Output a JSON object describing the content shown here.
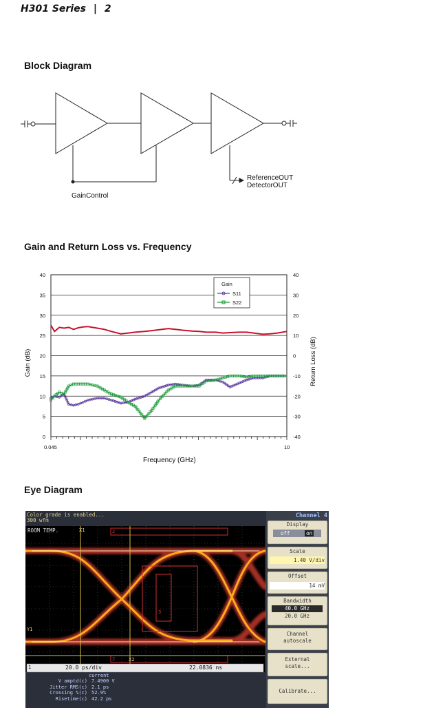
{
  "header": {
    "series": "H301 Series",
    "separator": "|",
    "page": "2"
  },
  "block_diagram": {
    "title": "Block Diagram",
    "gain_control_label": "GainControl",
    "ref_out_label": "ReferenceOUT",
    "det_out_label": "DetectorOUT"
  },
  "gain_chart": {
    "title": "Gain and Return Loss vs. Frequency"
  },
  "chart_data": {
    "type": "line",
    "title": "Gain and Return Loss vs. Frequency",
    "xlabel": "Frequency (GHz)",
    "ylabel": "Gain (dB)",
    "y2label": "Return Loss (dB)",
    "x_tick_labels": [
      "0.045",
      "10"
    ],
    "xlim": [
      0.045,
      10
    ],
    "ylim": [
      0,
      40
    ],
    "y2lim": [
      -40,
      40
    ],
    "yticks": [
      "0",
      "5",
      "10",
      "15",
      "20",
      "25",
      "30",
      "35",
      "40"
    ],
    "y2ticks": [
      "-40",
      "-30",
      "-20",
      "-10",
      "0",
      "10",
      "20",
      "30",
      "40"
    ],
    "grid": true,
    "legend": {
      "title": "Gain",
      "placement": "top-right-inner",
      "entries": [
        "S11",
        "S22"
      ]
    },
    "x": [
      0.045,
      0.2,
      0.4,
      0.6,
      0.8,
      1.0,
      1.2,
      1.4,
      1.6,
      1.8,
      2.0,
      2.3,
      2.6,
      3.0,
      3.3,
      3.6,
      4.0,
      4.3,
      4.6,
      5.0,
      5.3,
      5.6,
      6.0,
      6.3,
      6.6,
      7.0,
      7.3,
      7.6,
      8.0,
      8.3,
      8.6,
      9.0,
      9.3,
      9.6,
      10.0
    ],
    "series": [
      {
        "name": "Gain",
        "axis": "left",
        "color": "#c8102e",
        "values": [
          27.5,
          26.0,
          27.0,
          26.8,
          27.0,
          26.5,
          26.9,
          27.1,
          27.2,
          27.0,
          26.8,
          26.5,
          26.0,
          25.4,
          25.6,
          25.8,
          26.0,
          26.2,
          26.4,
          26.7,
          26.5,
          26.3,
          26.1,
          26.0,
          25.8,
          25.8,
          25.6,
          25.7,
          25.8,
          25.8,
          25.6,
          25.3,
          25.4,
          25.6,
          26.0
        ]
      },
      {
        "name": "S11",
        "axis": "right",
        "color": "#5b3aa0",
        "values": [
          -21,
          -20,
          -20.5,
          -19,
          -24,
          -24.5,
          -24,
          -23,
          -22,
          -21.5,
          -21,
          -21,
          -22,
          -23.5,
          -23,
          -21.5,
          -20,
          -18,
          -16,
          -14.5,
          -14,
          -14.5,
          -15,
          -14.5,
          -12,
          -12,
          -13,
          -15.5,
          -13.5,
          -12,
          -11,
          -11,
          -10,
          -10,
          -10
        ]
      },
      {
        "name": "S22",
        "axis": "right",
        "color": "#1a9a3a",
        "values": [
          -22,
          -20,
          -18,
          -19,
          -15,
          -14,
          -14,
          -14,
          -14,
          -14.5,
          -15,
          -17,
          -19,
          -20.5,
          -23,
          -25,
          -31,
          -27,
          -22,
          -17,
          -15,
          -15,
          -15,
          -15,
          -12.5,
          -12,
          -11,
          -10,
          -10,
          -10.5,
          -10,
          -10,
          -10,
          -10,
          -10
        ]
      }
    ]
  },
  "eye_diagram": {
    "title": "Eye Diagram",
    "msg_line1": "Color grade is enabled...",
    "msg_line2": "300 wfm",
    "room_temp": "ROOM TEMP.",
    "marker_x1": "X1",
    "marker_x2": "X2",
    "marker_y1": "Y1",
    "marker_2a": "2",
    "marker_2b": "2",
    "marker_3": "3",
    "marker_1": "1",
    "timebase": "20.0 ps/div",
    "position": "22.0836 ns",
    "current_label": "current",
    "measurements": [
      {
        "label": "V amptd(c)",
        "value": "7.4900 V"
      },
      {
        "label": "Jitter RMS(c)",
        "value": "2.1 ps"
      },
      {
        "label": "Crossing %(c)",
        "value": "52.9%"
      },
      {
        "label": "Risetime(c)",
        "value": "42.2 ps"
      }
    ],
    "side_panel": {
      "channel": "Channel 4",
      "display_label": "Display",
      "display_off": "off",
      "display_on": "on",
      "scale_label": "Scale",
      "scale_value": "1.40 V/div",
      "offset_label": "Offset",
      "offset_value": "14 mV",
      "bandwidth_label": "Bandwidth",
      "bandwidth_opt1": "40.0 GHz",
      "bandwidth_opt2": "20.0 GHz",
      "autoscale_label": "Channel autoscale",
      "external_scale_label": "External scale...",
      "calibrate_label": "Calibrate..."
    }
  }
}
